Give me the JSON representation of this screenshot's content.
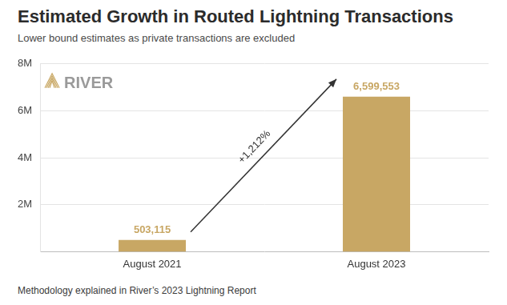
{
  "chart_data": {
    "type": "bar",
    "title": "Estimated Growth in Routed Lightning Transactions",
    "subtitle": "Lower bound estimates as private transactions are excluded",
    "logo": "RIVER",
    "categories": [
      "August 2021",
      "August 2023"
    ],
    "values": [
      503115,
      6599553
    ],
    "value_labels": [
      "503,115",
      "6,599,553"
    ],
    "data_labels": true,
    "color": "#c8a764",
    "ylim": [
      0,
      8000000
    ],
    "yticks": [
      {
        "value": 2000000,
        "label": "2M"
      },
      {
        "value": 4000000,
        "label": "4M"
      },
      {
        "value": 6000000,
        "label": "6M"
      },
      {
        "value": 8000000,
        "label": "8M"
      }
    ],
    "grid": true,
    "annotation": "+1,212%",
    "footer": "Methodology explained in River’s 2023 Lightning Report"
  }
}
